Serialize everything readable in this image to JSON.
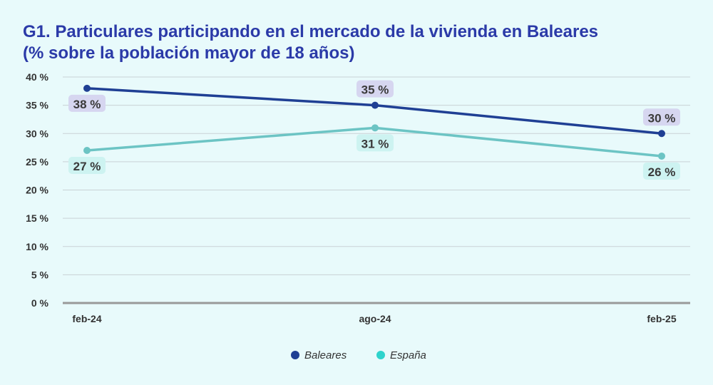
{
  "chart_data": {
    "type": "line",
    "title": "G1. Particulares participando en el mercado de la vivienda en Baleares",
    "subtitle": "(% sobre la población mayor de 18 años)",
    "categories": [
      "feb-24",
      "ago-24",
      "feb-25"
    ],
    "ylim": [
      0,
      40
    ],
    "yticks": [
      "0 %",
      "5 %",
      "10 %",
      "15 %",
      "20 %",
      "25 %",
      "30 %",
      "35 %",
      "40 %"
    ],
    "grid": true,
    "legend_position": "bottom",
    "series": [
      {
        "name": "Baleares",
        "values": [
          38,
          35,
          30
        ],
        "labels": [
          "38 %",
          "35 %",
          "30 %"
        ],
        "color": "#1f3f94",
        "marker_color": "#1f3f94",
        "label_bg": "#d6d6f0"
      },
      {
        "name": "España",
        "values": [
          27,
          31,
          26
        ],
        "labels": [
          "27 %",
          "31 %",
          "26 %"
        ],
        "color": "#6cc4c4",
        "marker_color": "#6cc4c4",
        "legend_color": "#2ed3cc",
        "label_bg": "#cdf3f1"
      }
    ],
    "colors": {
      "title": "#2b3aa8",
      "gridline": "#c9d2d6",
      "baseline": "#999999"
    }
  }
}
